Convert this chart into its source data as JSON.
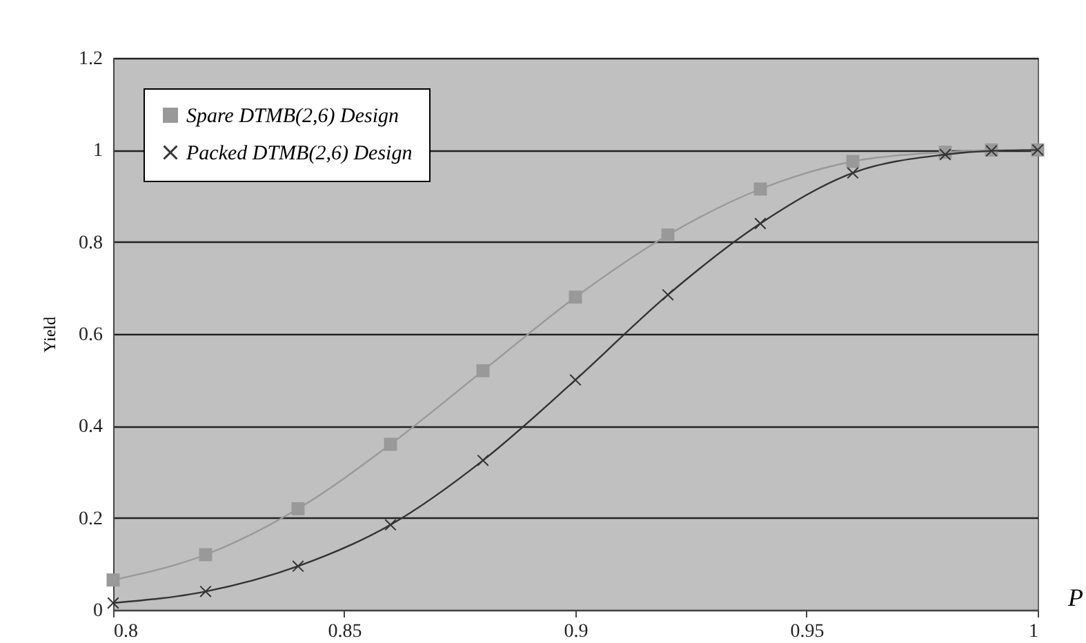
{
  "chart_data": {
    "type": "line",
    "xlabel": "P",
    "ylabel": "Yield",
    "x": [
      0.8,
      0.82,
      0.84,
      0.86,
      0.88,
      0.9,
      0.92,
      0.94,
      0.96,
      0.98,
      0.99,
      1
    ],
    "series": [
      {
        "name": "Spare DTMB(2,6) Design",
        "color": "#999999",
        "marker": "square",
        "values": [
          0.065,
          0.12,
          0.22,
          0.36,
          0.52,
          0.68,
          0.815,
          0.915,
          0.975,
          0.995,
          1,
          1
        ]
      },
      {
        "name": "Packed DTMB(2,6) Design",
        "color": "#333333",
        "marker": "cross",
        "values": [
          0.015,
          0.04,
          0.095,
          0.185,
          0.325,
          0.5,
          0.685,
          0.84,
          0.95,
          0.99,
          0.998,
          1
        ]
      }
    ],
    "xlim": [
      0.8,
      1
    ],
    "xticks": [
      0.8,
      0.85,
      0.9,
      0.95,
      1
    ],
    "ylim": [
      0,
      1.2
    ],
    "yticks": [
      0,
      0.2,
      0.4,
      0.6,
      0.8,
      1,
      1.2
    ],
    "grid": "y",
    "legend": "top left"
  }
}
